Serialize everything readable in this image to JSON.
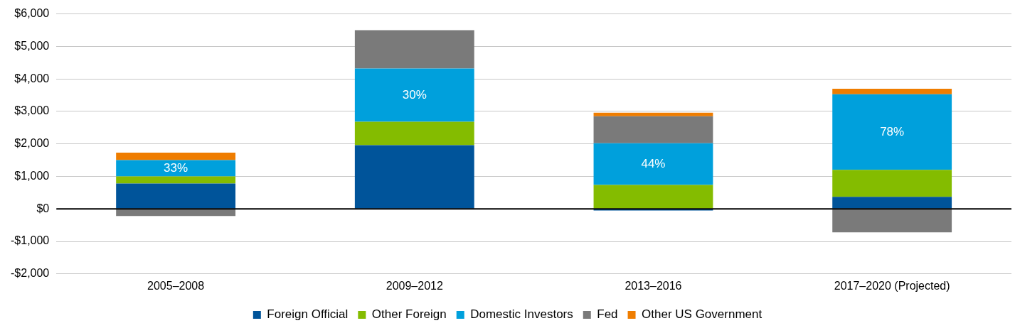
{
  "chart_data": {
    "type": "bar",
    "stacked": true,
    "categories": [
      "2005–2008",
      "2009–2012",
      "2013–2016",
      "2017–2020 (Projected)"
    ],
    "series": [
      {
        "name": "Foreign Official",
        "color": "#00549a",
        "values": [
          780,
          1960,
          -50,
          370
        ]
      },
      {
        "name": "Other Foreign",
        "color": "#84bc00",
        "values": [
          220,
          720,
          740,
          830
        ]
      },
      {
        "name": "Domestic Investors",
        "color": "#00a0dc",
        "values": [
          500,
          1640,
          1280,
          2330
        ]
      },
      {
        "name": "Fed",
        "color": "#7a7a7a",
        "values": [
          -220,
          1180,
          830,
          -720
        ]
      },
      {
        "name": "Other US Government",
        "color": "#ef7d00",
        "values": [
          230,
          null,
          110,
          170
        ]
      }
    ],
    "ylim": [
      -2000,
      6000
    ],
    "yticks": [
      {
        "value": -2000,
        "label": "-$2,000"
      },
      {
        "value": -1000,
        "label": "-$1,000"
      },
      {
        "value": 0,
        "label": "$0"
      },
      {
        "value": 1000,
        "label": "$1,000"
      },
      {
        "value": 2000,
        "label": "$2,000"
      },
      {
        "value": 3000,
        "label": "$3,000"
      },
      {
        "value": 4000,
        "label": "$4,000"
      },
      {
        "value": 5000,
        "label": "$5,000"
      },
      {
        "value": 6000,
        "label": "$6,000"
      }
    ],
    "annotations": [
      "33%",
      "30%",
      "44%",
      "78%"
    ],
    "grid": "y",
    "legend": "bottom"
  }
}
